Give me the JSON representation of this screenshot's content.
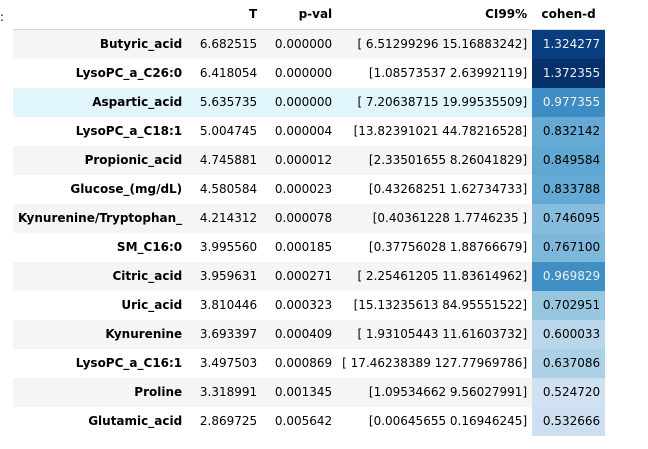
{
  "colon": ":",
  "columns": {
    "index": "",
    "t": "T",
    "p": "p-val",
    "ci": "CI99%",
    "d": "cohen-d"
  },
  "colors": {
    "gradient_low": "#f7fbff",
    "gradient_high": "#08306b",
    "hover_row": "#e1f5fd",
    "stripe": "#f5f5f5"
  },
  "rows": [
    {
      "name": "Butyric_acid",
      "t": "6.682515",
      "p": "0.000000",
      "ci": "[ 6.51299296 15.16883242]",
      "d": "1.324277",
      "bg": "#083d7f",
      "fg": "#f1f1f1"
    },
    {
      "name": "LysoPC_a_C26:0",
      "t": "6.418054",
      "p": "0.000000",
      "ci": "[1.08573537 2.63992119]",
      "d": "1.372355",
      "bg": "#08306b",
      "fg": "#f1f1f1"
    },
    {
      "name": "Aspartic_acid",
      "t": "5.635735",
      "p": "0.000000",
      "ci": "[ 7.20638715 19.99535509]",
      "d": "0.977355",
      "bg": "#3d8dc4",
      "fg": "#f1f1f1"
    },
    {
      "name": "LysoPC_a_C18:1",
      "t": "5.004745",
      "p": "0.000004",
      "ci": "[13.82391021 44.78216528]",
      "d": "0.832142",
      "bg": "#65aad4",
      "fg": "#000000"
    },
    {
      "name": "Propionic_acid",
      "t": "4.745881",
      "p": "0.000012",
      "ci": "[2.33501655 8.26041829]",
      "d": "0.849584",
      "bg": "#60a7d2",
      "fg": "#000000"
    },
    {
      "name": "Glucose_(mg/dL)",
      "t": "4.580584",
      "p": "0.000023",
      "ci": "[0.43268251 1.62734733]",
      "d": "0.833788",
      "bg": "#65aad4",
      "fg": "#000000"
    },
    {
      "name": "Kynurenine/Tryptophan_",
      "t": "4.214312",
      "p": "0.000078",
      "ci": "[0.40361228 1.7746235 ]",
      "d": "0.746095",
      "bg": "#86bcdc",
      "fg": "#000000"
    },
    {
      "name": "SM_C16:0",
      "t": "3.995560",
      "p": "0.000185",
      "ci": "[0.37756028 1.88766679]",
      "d": "0.767100",
      "bg": "#7db8da",
      "fg": "#000000"
    },
    {
      "name": "Citric_acid",
      "t": "3.959631",
      "p": "0.000271",
      "ci": "[ 2.25461205 11.83614962]",
      "d": "0.969829",
      "bg": "#3f8fc5",
      "fg": "#f1f1f1"
    },
    {
      "name": "Uric_acid",
      "t": "3.810446",
      "p": "0.000323",
      "ci": "[15.13235613 84.95551522]",
      "d": "0.702951",
      "bg": "#97c6df",
      "fg": "#000000"
    },
    {
      "name": "Kynurenine",
      "t": "3.693397",
      "p": "0.000409",
      "ci": "[ 1.93105443 11.61603732]",
      "d": "0.600033",
      "bg": "#bad6eb",
      "fg": "#000000"
    },
    {
      "name": "LysoPC_a_C16:1",
      "t": "3.497503",
      "p": "0.000869",
      "ci": "[ 17.46238389 127.77969786]",
      "d": "0.637086",
      "bg": "#acd0e6",
      "fg": "#000000"
    },
    {
      "name": "Proline",
      "t": "3.318991",
      "p": "0.001345",
      "ci": "[1.09534662 9.56027991]",
      "d": "0.524720",
      "bg": "#d0e1f2",
      "fg": "#000000"
    },
    {
      "name": "Glutamic_acid",
      "t": "2.869725",
      "p": "0.005642",
      "ci": "[0.00645655 0.16946245]",
      "d": "0.532666",
      "bg": "#cde0f1",
      "fg": "#000000"
    }
  ]
}
